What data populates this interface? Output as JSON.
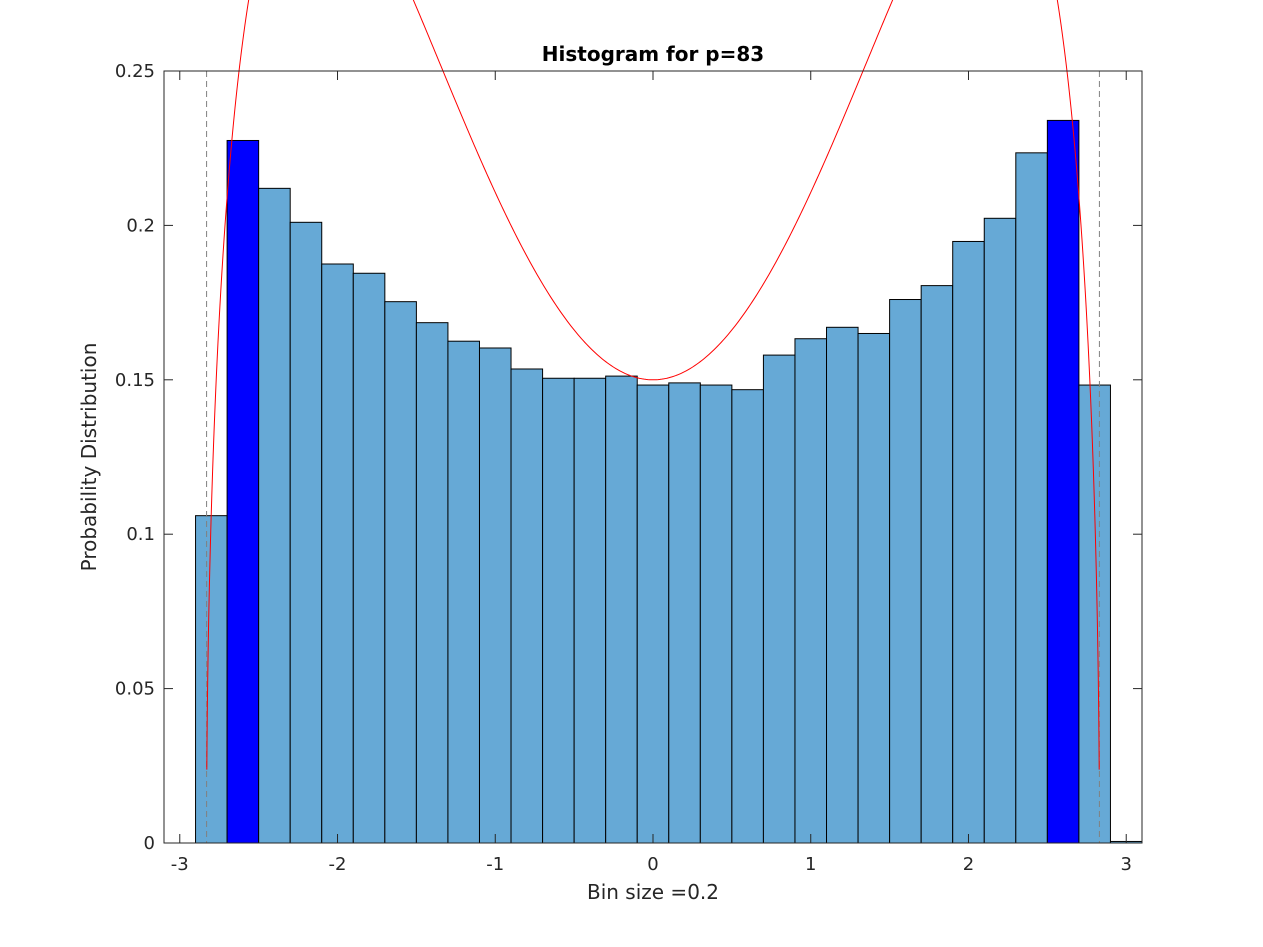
{
  "chart_data": {
    "type": "bar",
    "title": "Histogram for p=83",
    "xlabel": "Bin size =0.2",
    "ylabel": "Probability Distribution",
    "xlim": [
      -3.1,
      3.1
    ],
    "ylim": [
      0,
      0.25
    ],
    "xticks": [
      -3,
      -2,
      -1,
      0,
      1,
      2,
      3
    ],
    "xtick_labels": [
      "-3",
      "-2",
      "-1",
      "0",
      "1",
      "2",
      "3"
    ],
    "yticks": [
      0,
      0.05,
      0.1,
      0.15,
      0.2,
      0.25
    ],
    "ytick_labels": [
      "0",
      "0.05",
      "0.1",
      "0.15",
      "0.2",
      "0.25"
    ],
    "grid": false,
    "legend": "none",
    "bin_width": 0.2,
    "bin_edges": [
      -3.1,
      -2.9,
      -2.7,
      -2.5,
      -2.3,
      -2.1,
      -1.9,
      -1.7,
      -1.5,
      -1.3,
      -1.1,
      -0.9,
      -0.7,
      -0.5,
      -0.3,
      -0.1,
      0.1,
      0.3,
      0.5,
      0.7,
      0.9,
      1.1,
      1.3,
      1.5,
      1.7,
      1.9,
      2.1,
      2.3,
      2.5,
      2.7,
      2.9,
      3.1
    ],
    "values": [
      0,
      0.106,
      0.2275,
      0.212,
      0.201,
      0.1875,
      0.1845,
      0.1753,
      0.1685,
      0.1625,
      0.1603,
      0.1535,
      0.1505,
      0.1505,
      0.1512,
      0.1483,
      0.149,
      0.1483,
      0.1468,
      0.158,
      0.1633,
      0.167,
      0.165,
      0.176,
      0.1805,
      0.1948,
      0.2023,
      0.2235,
      0.234,
      0.1483,
      0.0005
    ],
    "highlighted_bins": [
      2,
      28
    ],
    "colors": {
      "bar": "#66a9d6",
      "highlight": "#0000ff",
      "edge": "#000000",
      "curve": "#ff0000",
      "bounds": "#808080"
    },
    "overlay_curve": {
      "type": "line",
      "support": [
        -2.83,
        2.83
      ],
      "center_value": 0.15,
      "peak_value": 0.238,
      "peak_x": [
        -2.65,
        2.65
      ]
    },
    "reference_lines": [
      -2.83,
      2.83
    ]
  }
}
